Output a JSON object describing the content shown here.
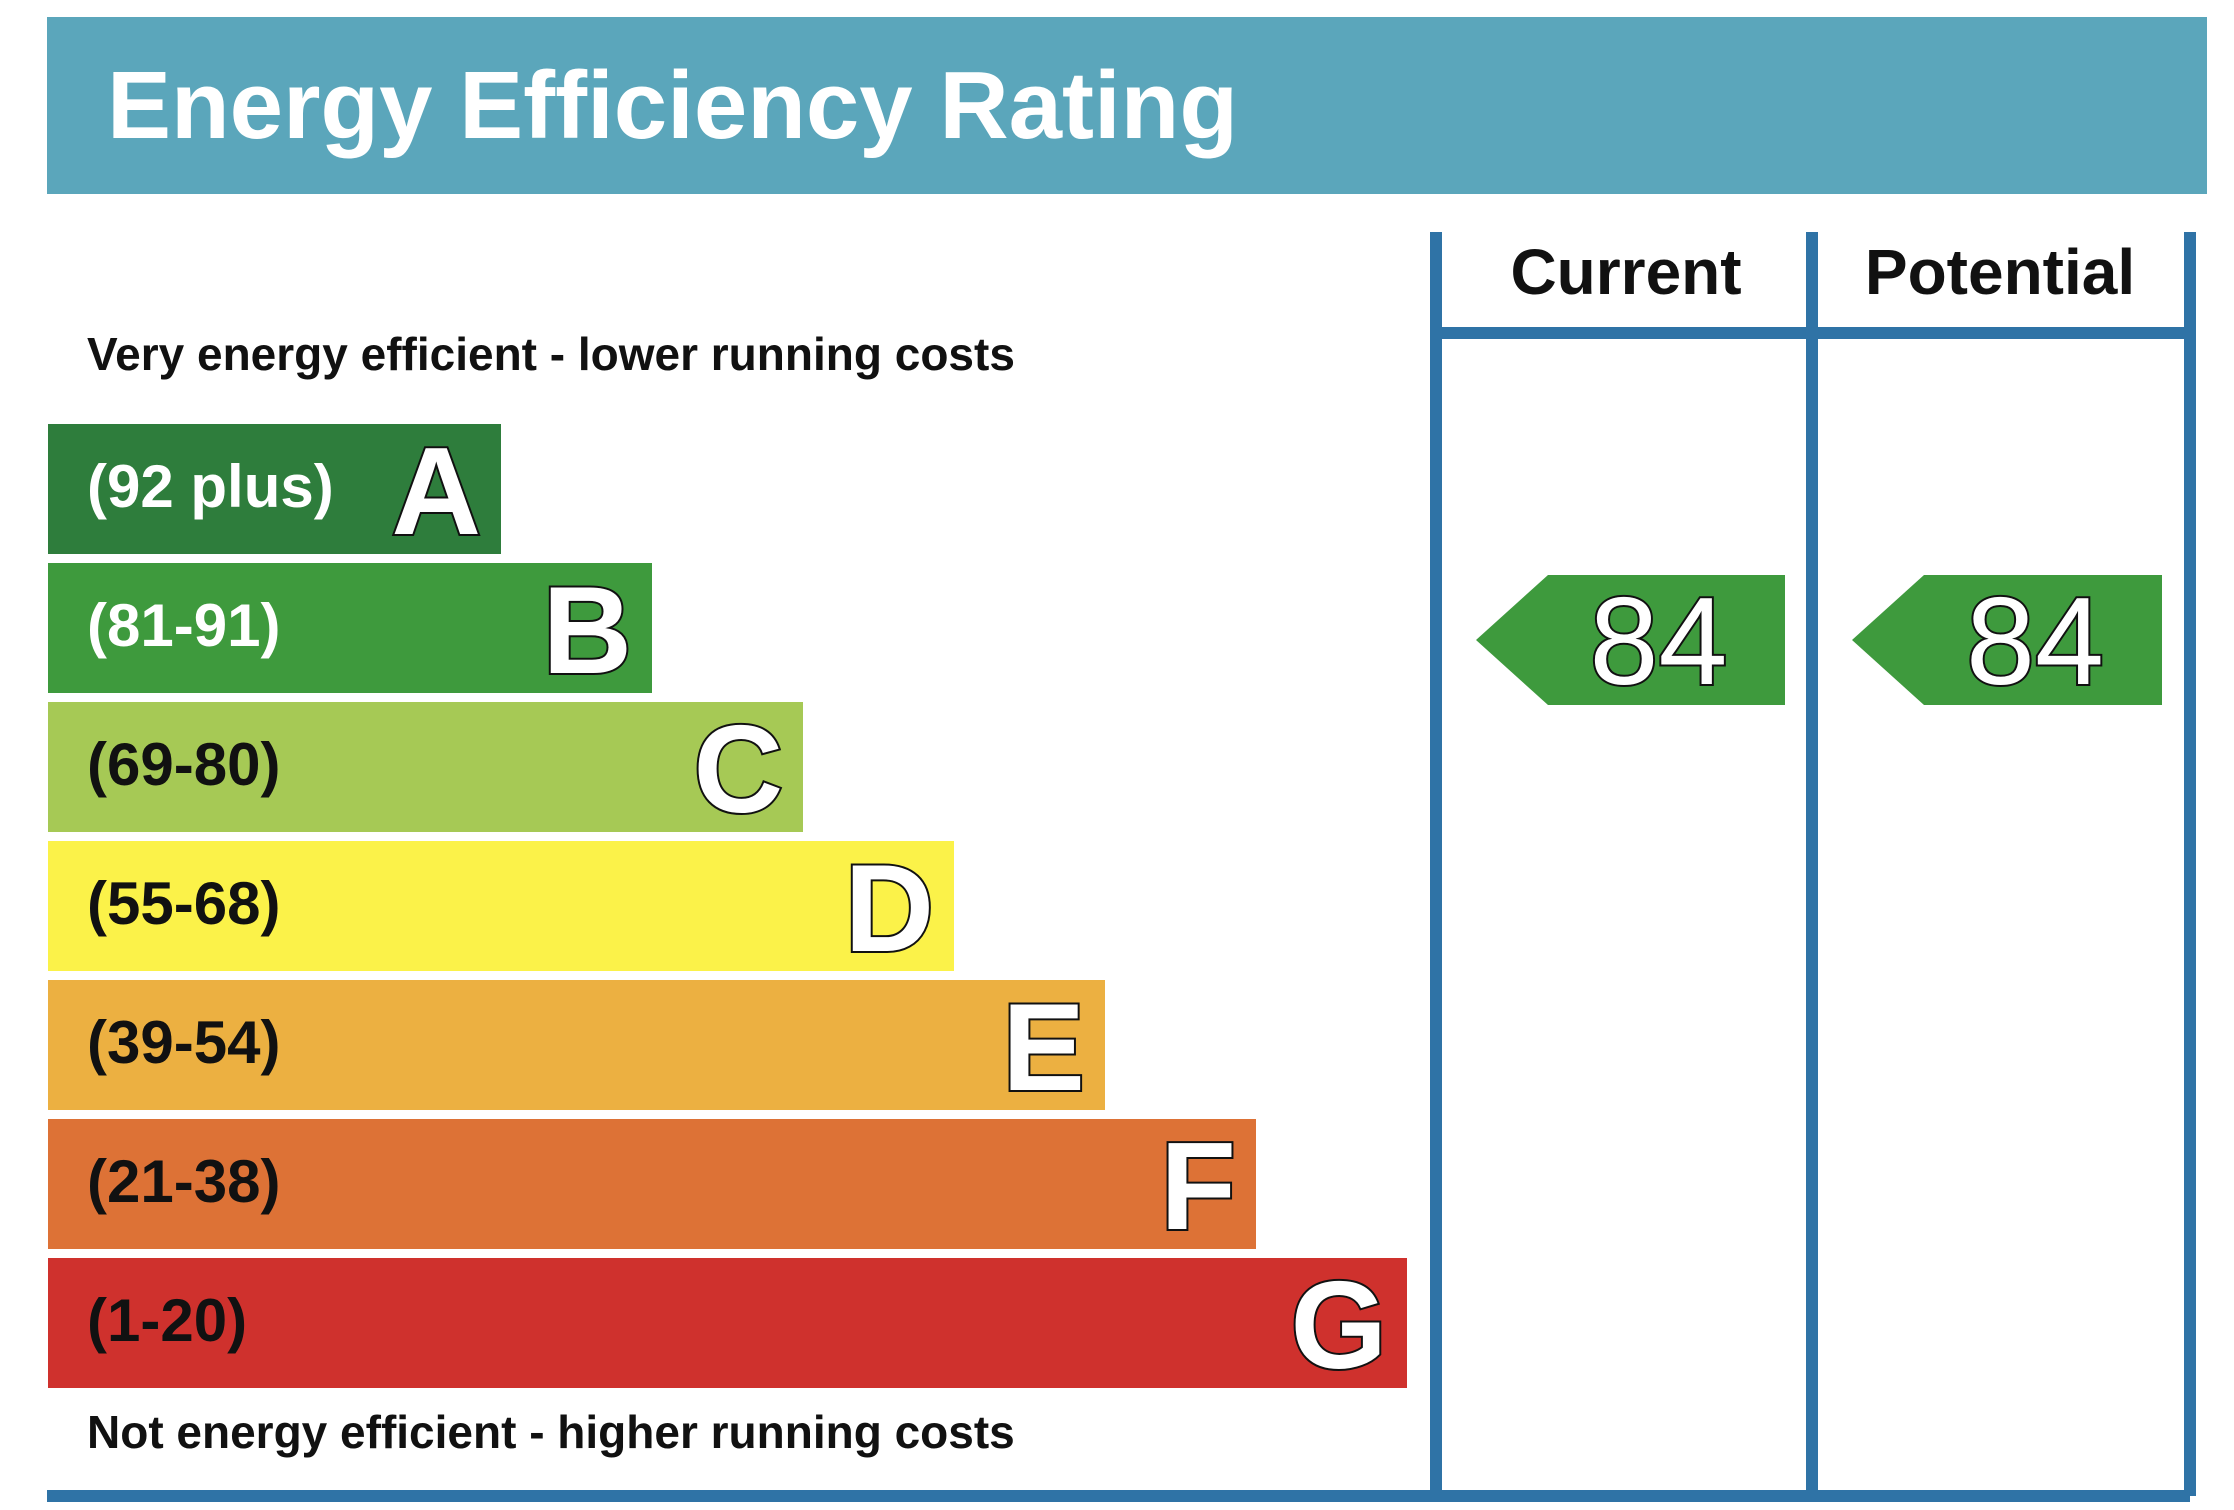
{
  "chart_data": {
    "type": "bar",
    "title": "Energy Efficiency Rating",
    "top_note": "Very energy efficient - lower running costs",
    "bottom_note": "Not energy efficient - higher running costs",
    "bands": [
      {
        "letter": "A",
        "range": "(92 plus)",
        "min": 92,
        "max": null,
        "color": "#2e7d3c",
        "range_text_color": "#ffffff"
      },
      {
        "letter": "B",
        "range": "(81-91)",
        "min": 81,
        "max": 91,
        "color": "#3e9a3d",
        "range_text_color": "#ffffff"
      },
      {
        "letter": "C",
        "range": "(69-80)",
        "min": 69,
        "max": 80,
        "color": "#a6c955",
        "range_text_color": "#111111"
      },
      {
        "letter": "D",
        "range": "(55-68)",
        "min": 55,
        "max": 68,
        "color": "#fbf249",
        "range_text_color": "#111111"
      },
      {
        "letter": "E",
        "range": "(39-54)",
        "min": 39,
        "max": 54,
        "color": "#ecb041",
        "range_text_color": "#111111"
      },
      {
        "letter": "F",
        "range": "(21-38)",
        "min": 21,
        "max": 38,
        "color": "#dd7236",
        "range_text_color": "#111111"
      },
      {
        "letter": "G",
        "range": "(1-20)",
        "min": 1,
        "max": 20,
        "color": "#cf312d",
        "range_text_color": "#111111"
      }
    ],
    "columns": [
      {
        "label": "Current",
        "value": "84",
        "band": "B"
      },
      {
        "label": "Potential",
        "value": "84",
        "band": "B"
      }
    ],
    "colors": {
      "header": "#5ba6bb",
      "frame": "#2f73a6",
      "indicator": "#3e9a3d"
    }
  }
}
